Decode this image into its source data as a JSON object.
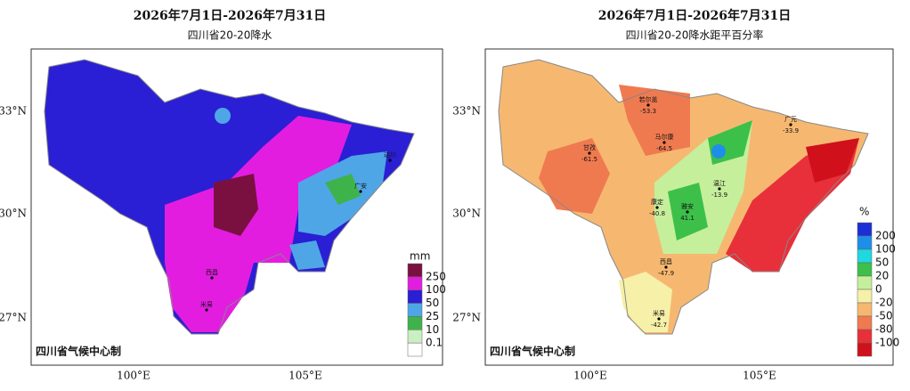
{
  "panels": [
    {
      "title": "2026年7月1日-2026年7月31日",
      "subtitle": "四川省20-20降水",
      "lat_labels": [
        "33°N",
        "30°N",
        "27°N"
      ],
      "lon_labels": [
        "100°E",
        "105°E"
      ],
      "legend": {
        "unit": "mm",
        "labels": [
          "250",
          "100",
          "50",
          "25",
          "10",
          "0.1"
        ],
        "colors": [
          "#7a1040",
          "#e21de0",
          "#2a1fd4",
          "#4ea6e6",
          "#3fb34b",
          "#c9efc2",
          "#ffffff"
        ]
      },
      "credit": "四川省气候中心制",
      "stations": [
        {
          "name": "西昌"
        },
        {
          "name": "米易"
        },
        {
          "name": "达川"
        },
        {
          "name": "广安"
        }
      ]
    },
    {
      "title": "2026年7月1日-2026年7月31日",
      "subtitle": "四川省20-20降水距平百分率",
      "lat_labels": [
        "33°N",
        "30°N",
        "27°N"
      ],
      "lon_labels": [
        "100°E",
        "105°E"
      ],
      "legend": {
        "unit": "%",
        "labels": [
          "200",
          "100",
          "50",
          "20",
          "0",
          "-20",
          "-50",
          "-80",
          "-100"
        ],
        "colors": [
          "#1a2fd6",
          "#1e8fe8",
          "#1fd8e0",
          "#3cc04a",
          "#c6ef9c",
          "#f6f0a8",
          "#f6b870",
          "#f07a50",
          "#e8303a",
          "#d0101a"
        ]
      },
      "credit": "四川省气候中心制",
      "stations": [
        {
          "name": "若尔盖",
          "value": "-53.3"
        },
        {
          "name": "甘孜",
          "value": "-61.5"
        },
        {
          "name": "马尔康",
          "value": "-64.5"
        },
        {
          "name": "广元",
          "value": "-33.9"
        },
        {
          "name": "康定",
          "value": "-40.8"
        },
        {
          "name": "雅安",
          "value": "41.1"
        },
        {
          "name": "温江",
          "value": "-13.9"
        },
        {
          "name": "西昌",
          "value": "-47.9"
        },
        {
          "name": "米易",
          "value": "-42.7"
        }
      ]
    }
  ]
}
